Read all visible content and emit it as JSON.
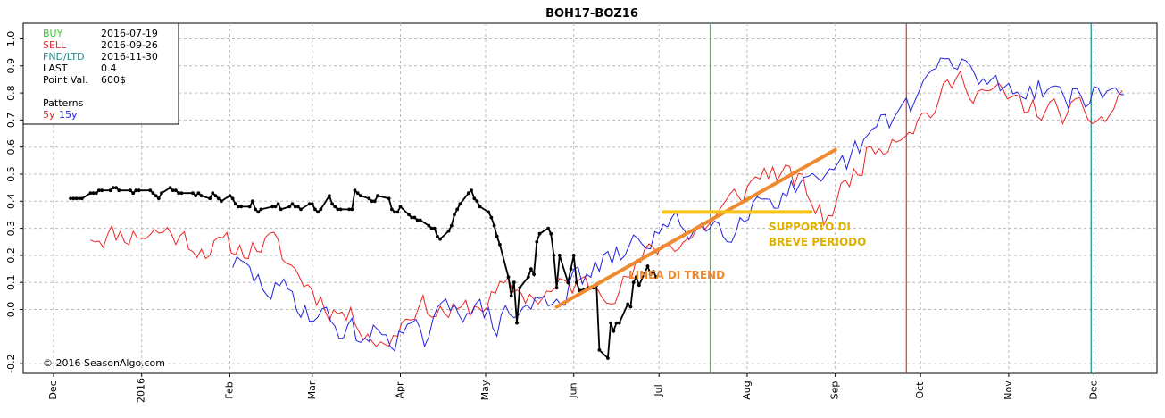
{
  "chart_data": {
    "type": "line",
    "title": "BOH17-BOZ16",
    "ylim": [
      -0.2,
      1.05
    ],
    "yticks": [
      "-0.2",
      "0.0",
      "0.1",
      "0.2",
      "0.3",
      "0.4",
      "0.5",
      "0.6",
      "0.7",
      "0.8",
      "0.9",
      "1.0"
    ],
    "xlim": [
      "2015-12-01",
      "2016-12-15"
    ],
    "xticks": [
      {
        "label": "Dec",
        "date": "2015-12-01"
      },
      {
        "label": "2016",
        "date": "2016-01-01"
      },
      {
        "label": "Feb",
        "date": "2016-02-01"
      },
      {
        "label": "Mar",
        "date": "2016-03-01"
      },
      {
        "label": "Apr",
        "date": "2016-04-01"
      },
      {
        "label": "May",
        "date": "2016-05-01"
      },
      {
        "label": "Jun",
        "date": "2016-06-01"
      },
      {
        "label": "Jul",
        "date": "2016-07-01"
      },
      {
        "label": "Aug",
        "date": "2016-08-01"
      },
      {
        "label": "Sep",
        "date": "2016-09-01"
      },
      {
        "label": "Oct",
        "date": "2016-10-01"
      },
      {
        "label": "Nov",
        "date": "2016-11-01"
      },
      {
        "label": "Dec",
        "date": "2016-12-01"
      }
    ],
    "grid": true,
    "colors": {
      "price": "#000000",
      "p5y": "#ee2222",
      "p15y": "#2222dd",
      "buy": "#33cc33",
      "sell": "#dd3333",
      "fnd": "#228888",
      "trend": "#f08a30",
      "support": "#f5c518",
      "support_text": "#e0b000"
    },
    "info": {
      "rows": [
        {
          "label": "BUY",
          "value": "2016-07-19",
          "color": "#33cc33"
        },
        {
          "label": "SELL",
          "value": "2016-09-26",
          "color": "#dd3333"
        },
        {
          "label": "FND/LTD",
          "value": "2016-11-30",
          "color": "#228888"
        },
        {
          "label": "LAST",
          "value": "0.4",
          "color": "#000000"
        },
        {
          "label": "Point Val.",
          "value": "600$",
          "color": "#000000"
        }
      ],
      "patterns_label": "Patterns",
      "p5y_label": "5y",
      "p15y_label": "15y"
    },
    "vlines": [
      {
        "date": "2016-07-19",
        "color": "#33cc33"
      },
      {
        "date": "2016-09-26",
        "color": "#dd3333"
      },
      {
        "date": "2016-11-30",
        "color": "#228888"
      }
    ],
    "copyright": "© 2016 SeasonAlgo.com",
    "annotations": {
      "trend_label": "LINEA DI TREND",
      "support_label_1": "SUPPORTO DI",
      "support_label_2": "BREVE PERIODO",
      "trend_line": [
        {
          "date": "2016-05-26",
          "y": 0.01
        },
        {
          "date": "2016-09-01",
          "y": 0.59
        }
      ],
      "support_line": [
        {
          "date": "2016-07-02",
          "y": 0.36
        },
        {
          "date": "2016-08-24",
          "y": 0.36
        }
      ]
    },
    "series": [
      {
        "key": "price",
        "points": [
          [
            "2015-12-07",
            0.41
          ],
          [
            "2015-12-08",
            0.41
          ],
          [
            "2015-12-09",
            0.41
          ],
          [
            "2015-12-10",
            0.41
          ],
          [
            "2015-12-11",
            0.41
          ],
          [
            "2015-12-14",
            0.43
          ],
          [
            "2015-12-15",
            0.43
          ],
          [
            "2015-12-16",
            0.43
          ],
          [
            "2015-12-17",
            0.44
          ],
          [
            "2015-12-18",
            0.44
          ],
          [
            "2015-12-21",
            0.44
          ],
          [
            "2015-12-22",
            0.45
          ],
          [
            "2015-12-23",
            0.45
          ],
          [
            "2015-12-24",
            0.44
          ],
          [
            "2015-12-28",
            0.44
          ],
          [
            "2015-12-29",
            0.43
          ],
          [
            "2015-12-30",
            0.44
          ],
          [
            "2015-12-31",
            0.44
          ],
          [
            "2016-01-04",
            0.44
          ],
          [
            "2016-01-05",
            0.43
          ],
          [
            "2016-01-06",
            0.42
          ],
          [
            "2016-01-07",
            0.41
          ],
          [
            "2016-01-08",
            0.43
          ],
          [
            "2016-01-11",
            0.45
          ],
          [
            "2016-01-12",
            0.44
          ],
          [
            "2016-01-13",
            0.44
          ],
          [
            "2016-01-14",
            0.43
          ],
          [
            "2016-01-15",
            0.43
          ],
          [
            "2016-01-19",
            0.43
          ],
          [
            "2016-01-20",
            0.42
          ],
          [
            "2016-01-21",
            0.43
          ],
          [
            "2016-01-22",
            0.42
          ],
          [
            "2016-01-25",
            0.41
          ],
          [
            "2016-01-26",
            0.43
          ],
          [
            "2016-01-27",
            0.42
          ],
          [
            "2016-01-28",
            0.41
          ],
          [
            "2016-01-29",
            0.4
          ],
          [
            "2016-02-01",
            0.42
          ],
          [
            "2016-02-02",
            0.41
          ],
          [
            "2016-02-03",
            0.39
          ],
          [
            "2016-02-04",
            0.38
          ],
          [
            "2016-02-05",
            0.38
          ],
          [
            "2016-02-08",
            0.38
          ],
          [
            "2016-02-09",
            0.4
          ],
          [
            "2016-02-10",
            0.37
          ],
          [
            "2016-02-11",
            0.36
          ],
          [
            "2016-02-12",
            0.37
          ],
          [
            "2016-02-16",
            0.38
          ],
          [
            "2016-02-17",
            0.38
          ],
          [
            "2016-02-18",
            0.39
          ],
          [
            "2016-02-19",
            0.37
          ],
          [
            "2016-02-22",
            0.38
          ],
          [
            "2016-02-23",
            0.39
          ],
          [
            "2016-02-24",
            0.38
          ],
          [
            "2016-02-25",
            0.38
          ],
          [
            "2016-02-26",
            0.37
          ],
          [
            "2016-02-29",
            0.39
          ],
          [
            "2016-03-01",
            0.39
          ],
          [
            "2016-03-02",
            0.37
          ],
          [
            "2016-03-03",
            0.36
          ],
          [
            "2016-03-04",
            0.37
          ],
          [
            "2016-03-07",
            0.42
          ],
          [
            "2016-03-08",
            0.39
          ],
          [
            "2016-03-09",
            0.38
          ],
          [
            "2016-03-10",
            0.37
          ],
          [
            "2016-03-11",
            0.37
          ],
          [
            "2016-03-14",
            0.37
          ],
          [
            "2016-03-15",
            0.37
          ],
          [
            "2016-03-16",
            0.44
          ],
          [
            "2016-03-17",
            0.43
          ],
          [
            "2016-03-18",
            0.42
          ],
          [
            "2016-03-21",
            0.41
          ],
          [
            "2016-03-22",
            0.4
          ],
          [
            "2016-03-23",
            0.4
          ],
          [
            "2016-03-24",
            0.42
          ],
          [
            "2016-03-28",
            0.41
          ],
          [
            "2016-03-29",
            0.37
          ],
          [
            "2016-03-30",
            0.36
          ],
          [
            "2016-03-31",
            0.36
          ],
          [
            "2016-04-01",
            0.38
          ],
          [
            "2016-04-04",
            0.35
          ],
          [
            "2016-04-05",
            0.34
          ],
          [
            "2016-04-06",
            0.34
          ],
          [
            "2016-04-07",
            0.33
          ],
          [
            "2016-04-08",
            0.33
          ],
          [
            "2016-04-11",
            0.31
          ],
          [
            "2016-04-12",
            0.3
          ],
          [
            "2016-04-13",
            0.3
          ],
          [
            "2016-04-14",
            0.27
          ],
          [
            "2016-04-15",
            0.26
          ],
          [
            "2016-04-18",
            0.29
          ],
          [
            "2016-04-19",
            0.31
          ],
          [
            "2016-04-20",
            0.35
          ],
          [
            "2016-04-21",
            0.37
          ],
          [
            "2016-04-22",
            0.39
          ],
          [
            "2016-04-25",
            0.43
          ],
          [
            "2016-04-26",
            0.44
          ],
          [
            "2016-04-27",
            0.41
          ],
          [
            "2016-04-28",
            0.4
          ],
          [
            "2016-04-29",
            0.38
          ],
          [
            "2016-05-02",
            0.36
          ],
          [
            "2016-05-03",
            0.34
          ],
          [
            "2016-05-04",
            0.31
          ],
          [
            "2016-05-05",
            0.27
          ],
          [
            "2016-05-06",
            0.24
          ],
          [
            "2016-05-09",
            0.12
          ],
          [
            "2016-05-10",
            0.05
          ],
          [
            "2016-05-11",
            0.1
          ],
          [
            "2016-05-12",
            -0.05
          ],
          [
            "2016-05-13",
            0.08
          ],
          [
            "2016-05-16",
            0.12
          ],
          [
            "2016-05-17",
            0.15
          ],
          [
            "2016-05-18",
            0.13
          ],
          [
            "2016-05-19",
            0.25
          ],
          [
            "2016-05-20",
            0.28
          ],
          [
            "2016-05-23",
            0.3
          ],
          [
            "2016-05-24",
            0.28
          ],
          [
            "2016-05-25",
            0.2
          ],
          [
            "2016-05-26",
            0.08
          ],
          [
            "2016-05-27",
            0.2
          ],
          [
            "2016-05-30",
            0.1
          ],
          [
            "2016-05-31",
            0.15
          ],
          [
            "2016-06-01",
            0.2
          ],
          [
            "2016-06-02",
            0.1
          ],
          [
            "2016-06-03",
            0.07
          ],
          [
            "2016-06-06",
            0.08
          ],
          [
            "2016-06-07",
            0.08
          ],
          [
            "2016-06-08",
            0.08
          ],
          [
            "2016-06-09",
            0.09
          ],
          [
            "2016-06-10",
            -0.15
          ],
          [
            "2016-06-13",
            -0.18
          ],
          [
            "2016-06-14",
            -0.05
          ],
          [
            "2016-06-15",
            -0.08
          ],
          [
            "2016-06-16",
            -0.05
          ],
          [
            "2016-06-17",
            -0.05
          ],
          [
            "2016-06-20",
            0.02
          ],
          [
            "2016-06-21",
            0.01
          ],
          [
            "2016-06-22",
            0.1
          ],
          [
            "2016-06-23",
            0.12
          ],
          [
            "2016-06-24",
            0.09
          ],
          [
            "2016-06-27",
            0.16
          ],
          [
            "2016-06-28",
            0.13
          ],
          [
            "2016-06-29",
            0.14
          ],
          [
            "2016-06-30",
            0.12
          ]
        ]
      }
    ]
  }
}
